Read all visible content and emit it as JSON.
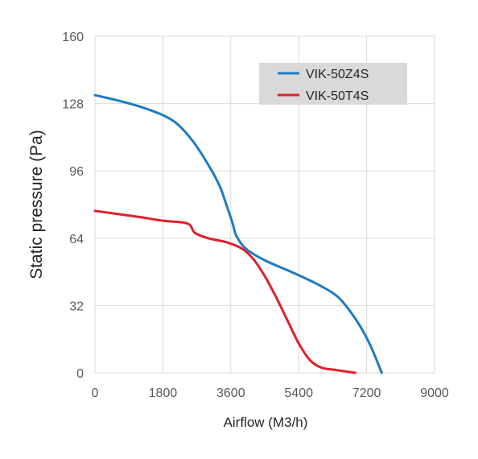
{
  "chart_data": {
    "type": "line",
    "title": "",
    "xlabel": "Airflow (M3/h)",
    "ylabel": "Static pressure (Pa)",
    "xlim": [
      0,
      9000
    ],
    "ylim": [
      0,
      160
    ],
    "x_ticks": [
      "0",
      "1800",
      "3600",
      "5400",
      "7200",
      "9000"
    ],
    "y_ticks": [
      "0",
      "32",
      "64",
      "96",
      "128",
      "160"
    ],
    "grid": "both",
    "legend": {
      "position": "top-right"
    },
    "series": [
      {
        "name": "VIK-50Z4S",
        "color": "#1f7bc1",
        "points": [
          [
            0,
            132
          ],
          [
            600,
            129.5
          ],
          [
            1200,
            126.5
          ],
          [
            1800,
            122.5
          ],
          [
            2200,
            118
          ],
          [
            2600,
            110
          ],
          [
            3000,
            99
          ],
          [
            3300,
            89
          ],
          [
            3500,
            79
          ],
          [
            3650,
            71
          ],
          [
            3750,
            65
          ],
          [
            4000,
            59
          ],
          [
            4500,
            53.5
          ],
          [
            5200,
            48
          ],
          [
            5800,
            43
          ],
          [
            6300,
            38
          ],
          [
            6600,
            33
          ],
          [
            7000,
            23
          ],
          [
            7300,
            13
          ],
          [
            7600,
            0
          ]
        ]
      },
      {
        "name": "VIK-50T4S",
        "color": "#e0202a",
        "points": [
          [
            0,
            77
          ],
          [
            600,
            75.5
          ],
          [
            1200,
            74
          ],
          [
            1800,
            72.3
          ],
          [
            2450,
            71
          ],
          [
            2650,
            66.5
          ],
          [
            3000,
            64
          ],
          [
            3500,
            62
          ],
          [
            3900,
            59
          ],
          [
            4200,
            54
          ],
          [
            4500,
            46
          ],
          [
            4800,
            36
          ],
          [
            5100,
            25
          ],
          [
            5400,
            14
          ],
          [
            5700,
            6
          ],
          [
            6000,
            2.5
          ],
          [
            6400,
            1.3
          ],
          [
            6900,
            0
          ]
        ]
      }
    ]
  }
}
